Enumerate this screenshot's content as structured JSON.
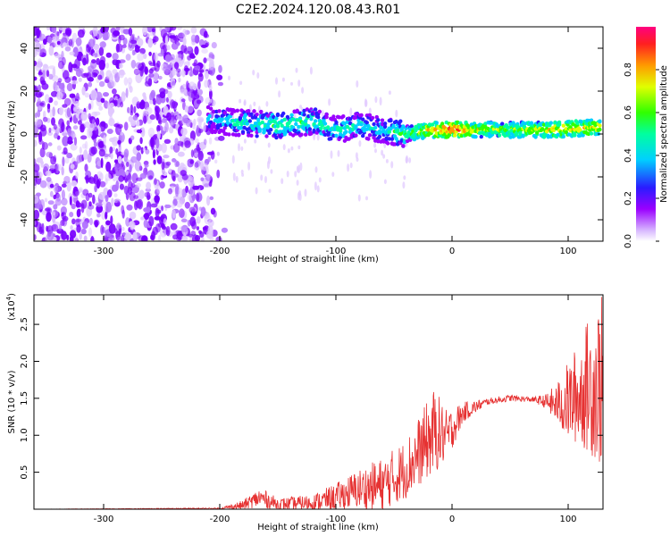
{
  "title": "C2E2.2024.120.08.43.R01",
  "colors": {
    "signal": "#e63232",
    "signal_bg": "#a000ff",
    "axis": "#000000"
  },
  "chart_data": [
    {
      "type": "heatmap",
      "xlabel": "Height of straight line (km)",
      "ylabel": "Frequency (Hz)",
      "xlim": [
        -360,
        130
      ],
      "ylim": [
        -50,
        50
      ],
      "x_ticks": [
        -300,
        -200,
        -100,
        0,
        100
      ],
      "y_ticks": [
        -40,
        -20,
        0,
        20,
        40
      ],
      "colorbar": {
        "label": "Normalized spectral amplitude",
        "range": [
          0,
          1
        ],
        "ticks": [
          "0.0",
          "0.2",
          "0.4",
          "0.6",
          "0.8"
        ],
        "tick_values": [
          0.0,
          0.2,
          0.4,
          0.6,
          0.8
        ]
      },
      "noise_region": [
        -360,
        -195
      ],
      "signal_track": [
        {
          "x": -210,
          "y": 7,
          "amp": 0.3
        },
        {
          "x": -180,
          "y": 5,
          "amp": 0.4
        },
        {
          "x": -150,
          "y": 4,
          "amp": 0.45
        },
        {
          "x": -120,
          "y": 6,
          "amp": 0.45
        },
        {
          "x": -100,
          "y": 2,
          "amp": 0.4
        },
        {
          "x": -80,
          "y": 4,
          "amp": 0.4
        },
        {
          "x": -60,
          "y": 2,
          "amp": 0.35
        },
        {
          "x": -40,
          "y": 0,
          "amp": 0.5
        },
        {
          "x": -20,
          "y": 2,
          "amp": 0.7
        },
        {
          "x": 0,
          "y": 2,
          "amp": 0.85
        },
        {
          "x": 30,
          "y": 2,
          "amp": 0.6
        },
        {
          "x": 60,
          "y": 2,
          "amp": 0.6
        },
        {
          "x": 90,
          "y": 2,
          "amp": 0.7
        },
        {
          "x": 120,
          "y": 3,
          "amp": 0.7
        }
      ]
    },
    {
      "type": "line",
      "xlabel": "Height of straight line (km)",
      "ylabel": "SNR (10 * v/v)",
      "y_scale_label": "(x10",
      "y_scale_exp": "4",
      "xlim": [
        -360,
        130
      ],
      "ylim": [
        0,
        2.9
      ],
      "x_ticks": [
        -300,
        -200,
        -100,
        0,
        100
      ],
      "y_ticks": [
        0.5,
        1.0,
        1.5,
        2.0,
        2.5
      ],
      "series": [
        {
          "x": [
            -360,
            -200,
            -180,
            -165,
            -150,
            -120,
            -100,
            -80,
            -60,
            -40,
            -25,
            -15,
            -5,
            10,
            30,
            50,
            70,
            80,
            90,
            100,
            110,
            120,
            128
          ],
          "y": [
            0.0,
            0.01,
            0.05,
            0.15,
            0.06,
            0.08,
            0.15,
            0.25,
            0.3,
            0.5,
            0.8,
            1.0,
            0.95,
            1.3,
            1.45,
            1.5,
            1.48,
            1.45,
            1.4,
            1.4,
            1.5,
            1.6,
            1.6
          ],
          "envelope": [
            0.0,
            0.02,
            0.12,
            0.3,
            0.15,
            0.2,
            0.35,
            0.55,
            0.7,
            0.95,
            1.35,
            1.65,
            1.35,
            1.45,
            1.5,
            1.55,
            1.52,
            1.55,
            1.7,
            2.0,
            2.3,
            2.7,
            2.9
          ]
        }
      ]
    }
  ]
}
